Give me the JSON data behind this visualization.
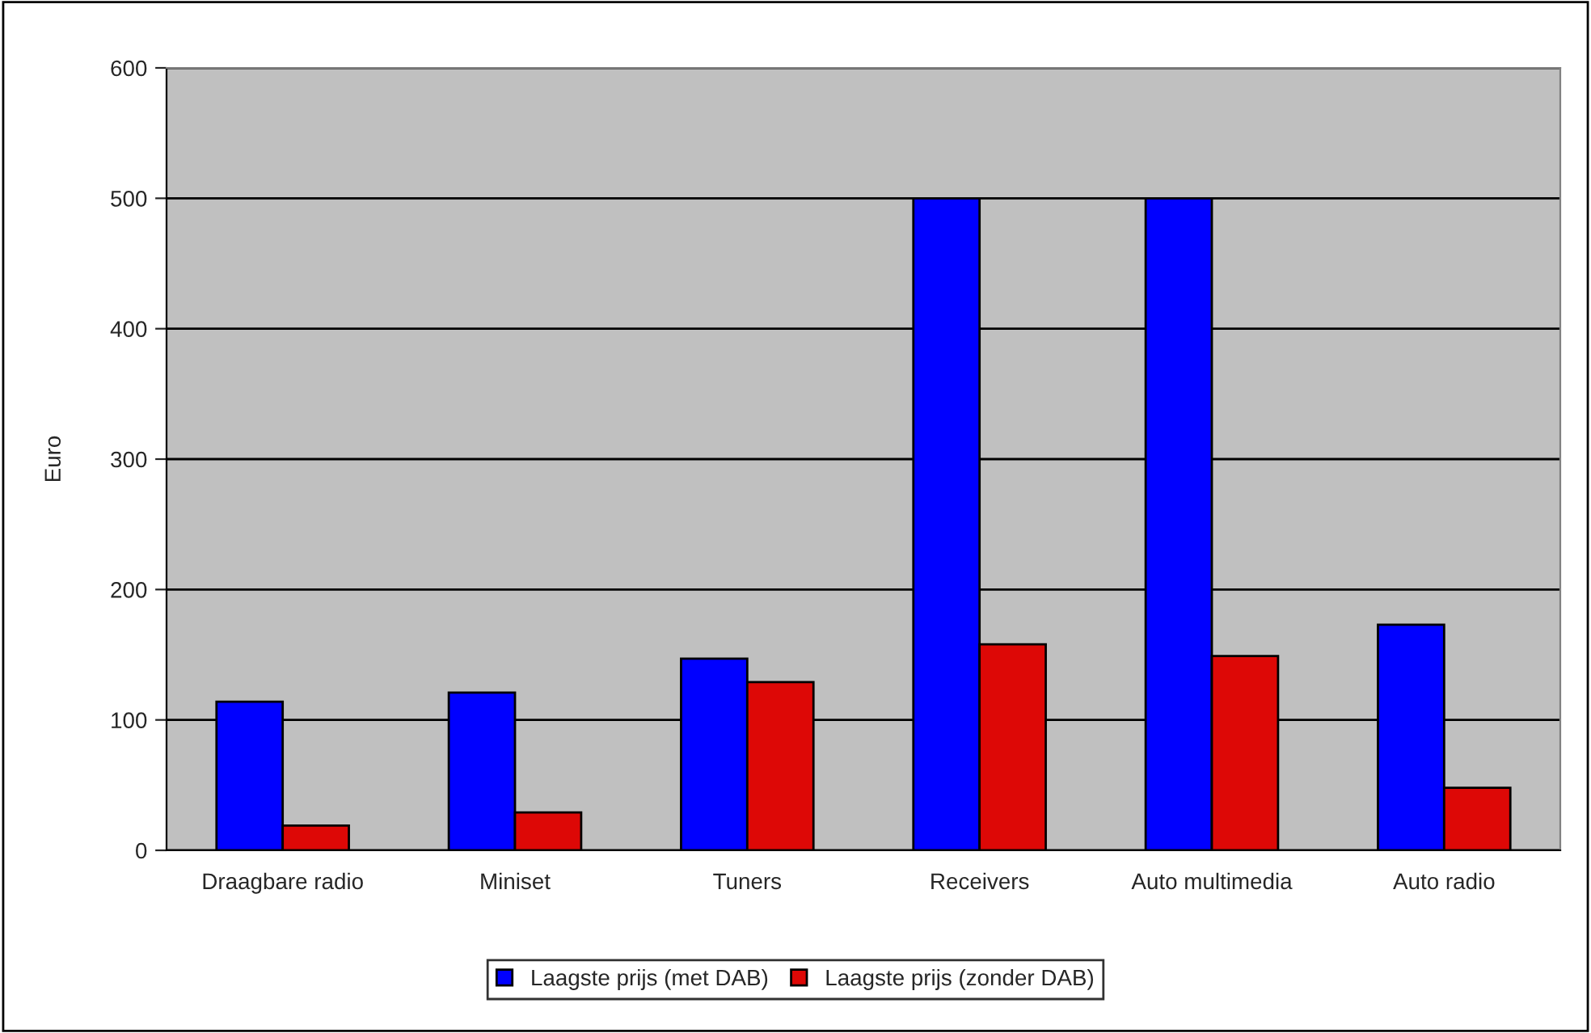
{
  "chart_data": {
    "type": "bar",
    "ylabel": "Euro",
    "categories": [
      "Draagbare radio",
      "Miniset",
      "Tuners",
      "Receivers",
      "Auto multimedia",
      "Auto radio"
    ],
    "series": [
      {
        "name": "Laagste prijs (met DAB)",
        "color": "#0000ff",
        "values": [
          114,
          121,
          147,
          500,
          500,
          173
        ]
      },
      {
        "name": "Laagste prijs (zonder DAB)",
        "color": "#dd0806",
        "values": [
          19,
          29,
          129,
          158,
          149,
          48
        ]
      }
    ],
    "ylim": [
      0,
      600
    ],
    "yticks": [
      0,
      100,
      200,
      300,
      400,
      500,
      600
    ],
    "grid": "y",
    "legend": "bottom"
  }
}
